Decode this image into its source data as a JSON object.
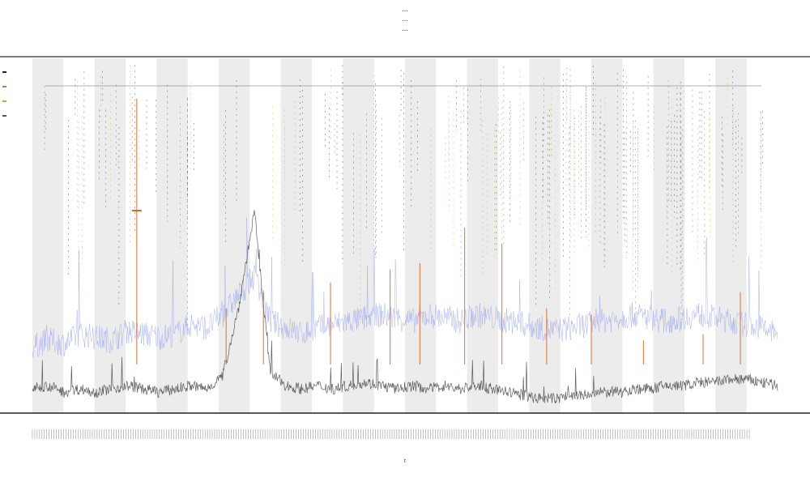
{
  "title_lines": [
    "…",
    "…",
    "…"
  ],
  "chart_data": {
    "type": "line",
    "title": "",
    "xlabel": "",
    "ylabel": "",
    "shaded_bands": 12,
    "grid": false,
    "legend": "left",
    "series": [
      {
        "name": "",
        "color": "#444444",
        "profile": [
          0.05,
          0.06,
          0.04,
          0.05,
          0.04,
          0.05,
          0.06,
          0.05,
          0.04,
          0.05,
          0.06,
          0.05,
          0.09,
          0.3,
          0.6,
          0.1,
          0.06,
          0.05,
          0.06,
          0.05,
          0.06,
          0.07,
          0.06,
          0.05,
          0.06,
          0.05,
          0.06,
          0.05,
          0.06,
          0.05,
          0.04,
          0.03,
          0.02,
          0.02,
          0.03,
          0.03,
          0.04,
          0.04,
          0.05,
          0.05,
          0.06,
          0.06,
          0.07,
          0.07,
          0.08,
          0.08,
          0.07,
          0.06
        ]
      },
      {
        "name": "",
        "color": "#9aa6f0",
        "profile": [
          0.18,
          0.2,
          0.19,
          0.22,
          0.21,
          0.2,
          0.23,
          0.22,
          0.21,
          0.22,
          0.25,
          0.24,
          0.28,
          0.34,
          0.4,
          0.26,
          0.24,
          0.22,
          0.24,
          0.25,
          0.26,
          0.27,
          0.28,
          0.27,
          0.26,
          0.28,
          0.27,
          0.26,
          0.28,
          0.27,
          0.26,
          0.25,
          0.24,
          0.23,
          0.24,
          0.25,
          0.26,
          0.27,
          0.28,
          0.27,
          0.26,
          0.27,
          0.28,
          0.27,
          0.26,
          0.25,
          0.24,
          0.22
        ]
      },
      {
        "name": "",
        "color": "#e06a2a",
        "spikes": [
          [
            0.14,
            0.95
          ],
          [
            0.26,
            0.3
          ],
          [
            0.31,
            0.35
          ],
          [
            0.4,
            0.38
          ],
          [
            0.48,
            0.42
          ],
          [
            0.52,
            0.44
          ],
          [
            0.58,
            0.55
          ],
          [
            0.63,
            0.5
          ],
          [
            0.69,
            0.3
          ],
          [
            0.75,
            0.28
          ],
          [
            0.82,
            0.2
          ],
          [
            0.9,
            0.22
          ],
          [
            0.95,
            0.35
          ]
        ]
      }
    ]
  },
  "legend_items": [
    {
      "label": "",
      "color": "#222222"
    },
    {
      "label": "",
      "color": "#e07030"
    },
    {
      "label": "",
      "color": "#c8b400"
    },
    {
      "label": "",
      "color": "#555555"
    }
  ],
  "x_axis_label": "t"
}
